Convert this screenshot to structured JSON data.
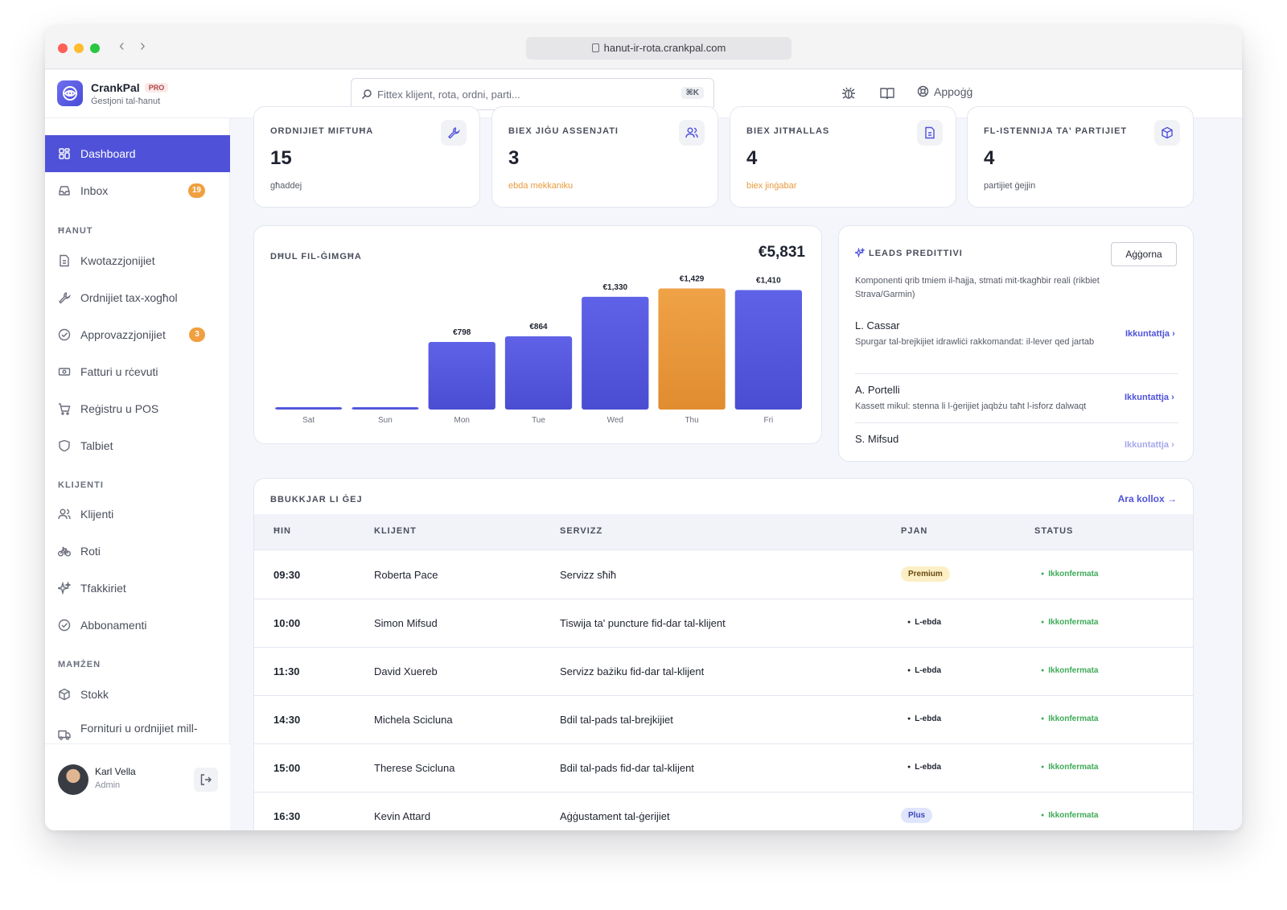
{
  "browser": {
    "url": "hanut-ir-rota.crankpal.com"
  },
  "app": {
    "name": "CrankPal",
    "badge": "PRO",
    "subtitle": "Ġestjoni tal-ħanut"
  },
  "search": {
    "placeholder": "Fittex klijent, rota, ordni, parti...",
    "shortcut": "⌘K"
  },
  "header": {
    "help_label": "Appoġġ"
  },
  "sidebar": {
    "top": [
      {
        "label": "Dashboard",
        "icon": "dashboard-grid-icon"
      },
      {
        "label": "Inbox",
        "badge": "19",
        "icon": "inbox-icon"
      }
    ],
    "sections": [
      {
        "title": "ĦANUT",
        "items": [
          {
            "label": "Kwotazzjonijiet",
            "icon": "document-icon"
          },
          {
            "label": "Ordnijiet tax-xogħol",
            "icon": "wrench-icon"
          },
          {
            "label": "Approvazzjonijiet",
            "badge": "3",
            "icon": "check-circle-icon"
          },
          {
            "label": "Fatturi u rċevuti",
            "icon": "cash-icon"
          },
          {
            "label": "Reġistru u POS",
            "icon": "cart-icon"
          },
          {
            "label": "Talbiet",
            "icon": "shield-icon"
          }
        ]
      },
      {
        "title": "KLIJENTI",
        "items": [
          {
            "label": "Klijenti",
            "icon": "users-icon"
          },
          {
            "label": "Roti",
            "icon": "bicycle-icon"
          },
          {
            "label": "Tfakkiriet",
            "icon": "sparkle-icon"
          },
          {
            "label": "Abbonamenti",
            "icon": "check-circle-icon"
          }
        ]
      },
      {
        "title": "MAĦŻEN",
        "items": [
          {
            "label": "Stokk",
            "icon": "box-icon"
          },
          {
            "label": "Fornituri u ordnijiet mill-",
            "icon": "truck-icon"
          }
        ]
      }
    ],
    "user": {
      "name": "Karl Vella",
      "role": "Admin"
    }
  },
  "stats": [
    {
      "label": "ORDNIJIET MIFTUĦA",
      "value": "15",
      "sub": "għaddej",
      "icon": "wrench-icon"
    },
    {
      "label": "BIEX JIĠU ASSENJATI",
      "value": "3",
      "sub": "ebda mekkaniku",
      "icon": "users-icon",
      "sub_color": "#e89a3c"
    },
    {
      "label": "BIEX JITĦALLAS",
      "value": "4",
      "sub": "biex jinġabar",
      "icon": "document-icon",
      "sub_color": "#e89a3c"
    },
    {
      "label": "FL-ISTENNIJA TA' PARTIJIET",
      "value": "4",
      "sub": "partijiet ġejjin",
      "icon": "box-icon"
    }
  ],
  "revenue": {
    "title": "DĦUL FIL-ĠIMGĦA",
    "total": "€5,831"
  },
  "chart_data": {
    "type": "bar",
    "categories": [
      "Sat",
      "Sun",
      "Mon",
      "Tue",
      "Wed",
      "Thu",
      "Fri"
    ],
    "values": [
      0,
      0,
      798,
      864,
      1330,
      1429,
      1410
    ],
    "value_labels": [
      "",
      "",
      "€798",
      "€864",
      "€1,330",
      "€1,429",
      "€1,410"
    ],
    "highlight_index": 5,
    "colors": {
      "bar": "#5558e0",
      "highlight": "#f0a247"
    },
    "ylim": [
      0,
      1500
    ]
  },
  "leads": {
    "title": "LEADS PREDITTIVI",
    "refresh_label": "Aġġorna",
    "description": "Komponenti qrib tmiem il-ħajja, stmati mit-tkagħbir reali (rikbiet Strava/Garmin)",
    "items": [
      {
        "name": "L. Cassar",
        "note": "Spurgar tal-brejkijiet idrawliċi rakkomandat: il-lever qed jartab",
        "action": "Ikkuntattja ›"
      },
      {
        "name": "A. Portelli",
        "note": "Kassett mikul: stenna li l-ġerijiet jaqbżu taħt l-isforz dalwaqt",
        "action": "Ikkuntattja ›"
      },
      {
        "name": "S. Mifsud",
        "note": "",
        "action": "Ikkuntattja ›"
      }
    ]
  },
  "bookings": {
    "title": "BBUKKJAR LI ĠEJ",
    "see_all": "Ara kollox →",
    "columns": [
      "ĦIN",
      "KLIJENT",
      "SERVIZZ",
      "PJAN",
      "STATUS"
    ],
    "rows": [
      {
        "time": "09:30",
        "client": "Roberta Pace",
        "service": "Servizz sħiħ",
        "plan": "Premium",
        "plan_style": "premium",
        "status": "Ikkonfermata"
      },
      {
        "time": "10:00",
        "client": "Simon Mifsud",
        "service": "Tiswija ta' puncture fid-dar tal-klijent",
        "plan": "L-ebda",
        "plan_style": "none",
        "status": "Ikkonfermata"
      },
      {
        "time": "11:30",
        "client": "David Xuereb",
        "service": "Servizz bażiku fid-dar tal-klijent",
        "plan": "L-ebda",
        "plan_style": "none",
        "status": "Ikkonfermata"
      },
      {
        "time": "14:30",
        "client": "Michela Scicluna",
        "service": "Bdil tal-pads tal-brejkijiet",
        "plan": "L-ebda",
        "plan_style": "none",
        "status": "Ikkonfermata"
      },
      {
        "time": "15:00",
        "client": "Therese Scicluna",
        "service": "Bdil tal-pads fid-dar tal-klijent",
        "plan": "L-ebda",
        "plan_style": "none",
        "status": "Ikkonfermata"
      },
      {
        "time": "16:30",
        "client": "Kevin Attard",
        "service": "Aġġustament tal-ġerijiet",
        "plan": "Plus",
        "plan_style": "plus",
        "status": "Ikkonfermata"
      }
    ]
  }
}
